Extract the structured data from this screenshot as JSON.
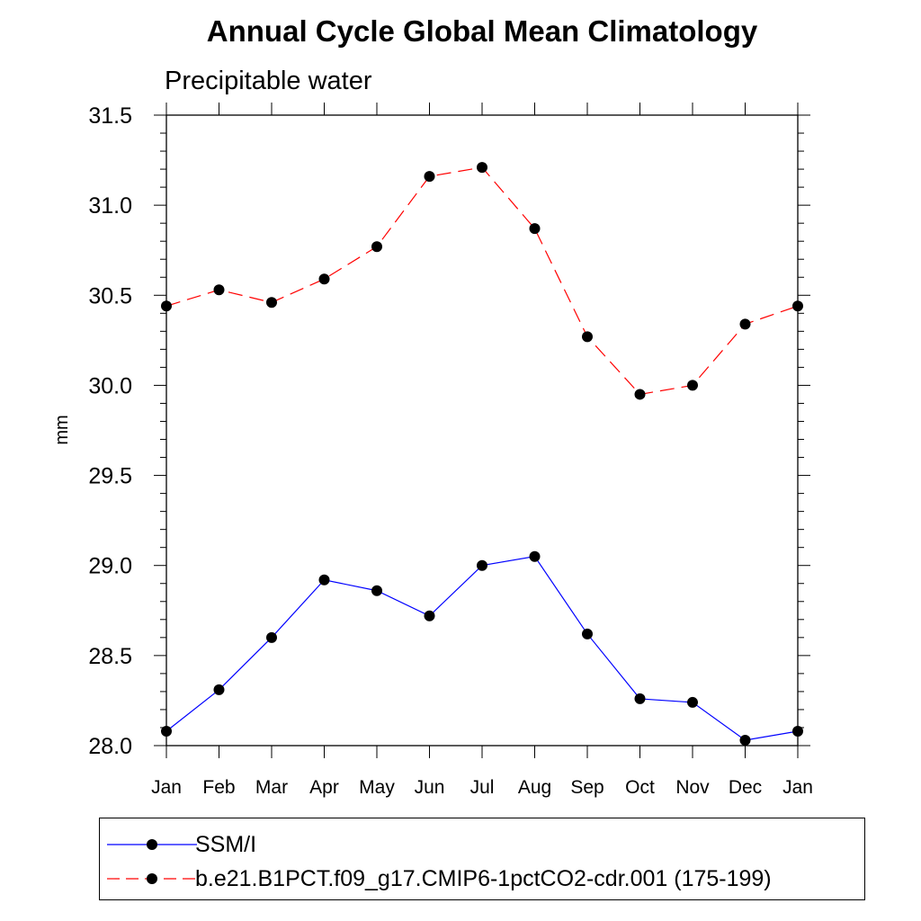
{
  "chart_data": {
    "type": "line",
    "title": "Annual Cycle Global Mean Climatology",
    "subtitle": "Precipitable water",
    "xlabel": "",
    "ylabel": "mm",
    "categories": [
      "Jan",
      "Feb",
      "Mar",
      "Apr",
      "May",
      "Jun",
      "Jul",
      "Aug",
      "Sep",
      "Oct",
      "Nov",
      "Dec",
      "Jan"
    ],
    "ylim": [
      28.0,
      31.5
    ],
    "yticks": [
      "28.0",
      "28.5",
      "29.0",
      "29.5",
      "30.0",
      "30.5",
      "31.0",
      "31.5"
    ],
    "grid": false,
    "series": [
      {
        "name": "SSM/I",
        "color": "#0000ff",
        "line_style": "solid",
        "marker": "filled-circle",
        "values": [
          28.08,
          28.31,
          28.6,
          28.92,
          28.86,
          28.72,
          29.0,
          29.05,
          28.62,
          28.26,
          28.24,
          28.03,
          28.08
        ]
      },
      {
        "name": "b.e21.B1PCT.f09_g17.CMIP6-1pctCO2-cdr.001 (175-199)",
        "color": "#ff0000",
        "line_style": "dashed",
        "marker": "filled-circle",
        "values": [
          30.44,
          30.53,
          30.46,
          30.59,
          30.77,
          31.16,
          31.21,
          30.87,
          30.27,
          29.95,
          30.0,
          30.34,
          30.44
        ]
      }
    ],
    "legend_position": "bottom"
  }
}
